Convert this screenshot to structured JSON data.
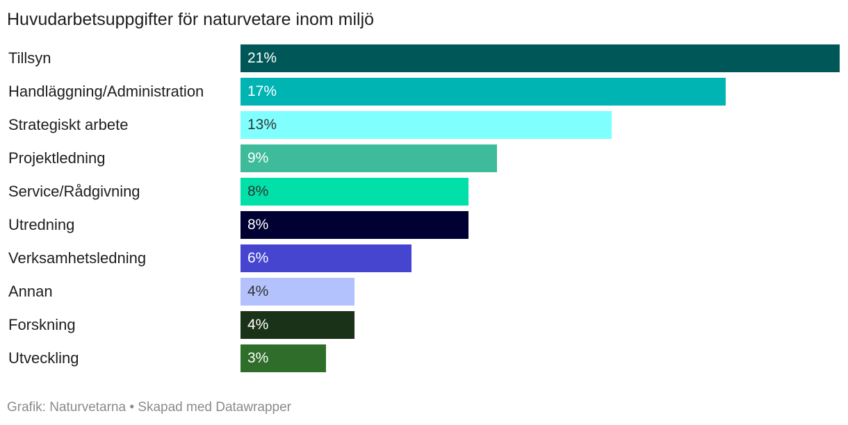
{
  "chart_data": {
    "type": "bar",
    "orientation": "horizontal",
    "title": "Huvudarbetsuppgifter för naturvetare inom miljö",
    "categories": [
      "Tillsyn",
      "Handläggning/Administration",
      "Strategiskt arbete",
      "Projektledning",
      "Service/Rådgivning",
      "Utredning",
      "Verksamhetsledning",
      "Annan",
      "Forskning",
      "Utveckling"
    ],
    "values": [
      21,
      17,
      13,
      9,
      8,
      8,
      6,
      4,
      4,
      3
    ],
    "value_labels": [
      "21%",
      "17%",
      "13%",
      "9%",
      "8%",
      "8%",
      "6%",
      "4%",
      "4%",
      "3%"
    ],
    "colors": [
      "#005757",
      "#00b4b4",
      "#80ffff",
      "#3dbb9a",
      "#00e0a8",
      "#000033",
      "#4545cf",
      "#b3c1fd",
      "#1a3318",
      "#2e6e2a"
    ],
    "label_colors": [
      "#ffffff",
      "#ffffff",
      "#333333",
      "#ffffff",
      "#333333",
      "#ffffff",
      "#ffffff",
      "#333333",
      "#ffffff",
      "#ffffff"
    ],
    "xlim": [
      0,
      21
    ],
    "grid": false,
    "legend": "none"
  },
  "footer": {
    "text": "Grafik: Naturvetarna • Skapad med Datawrapper"
  }
}
